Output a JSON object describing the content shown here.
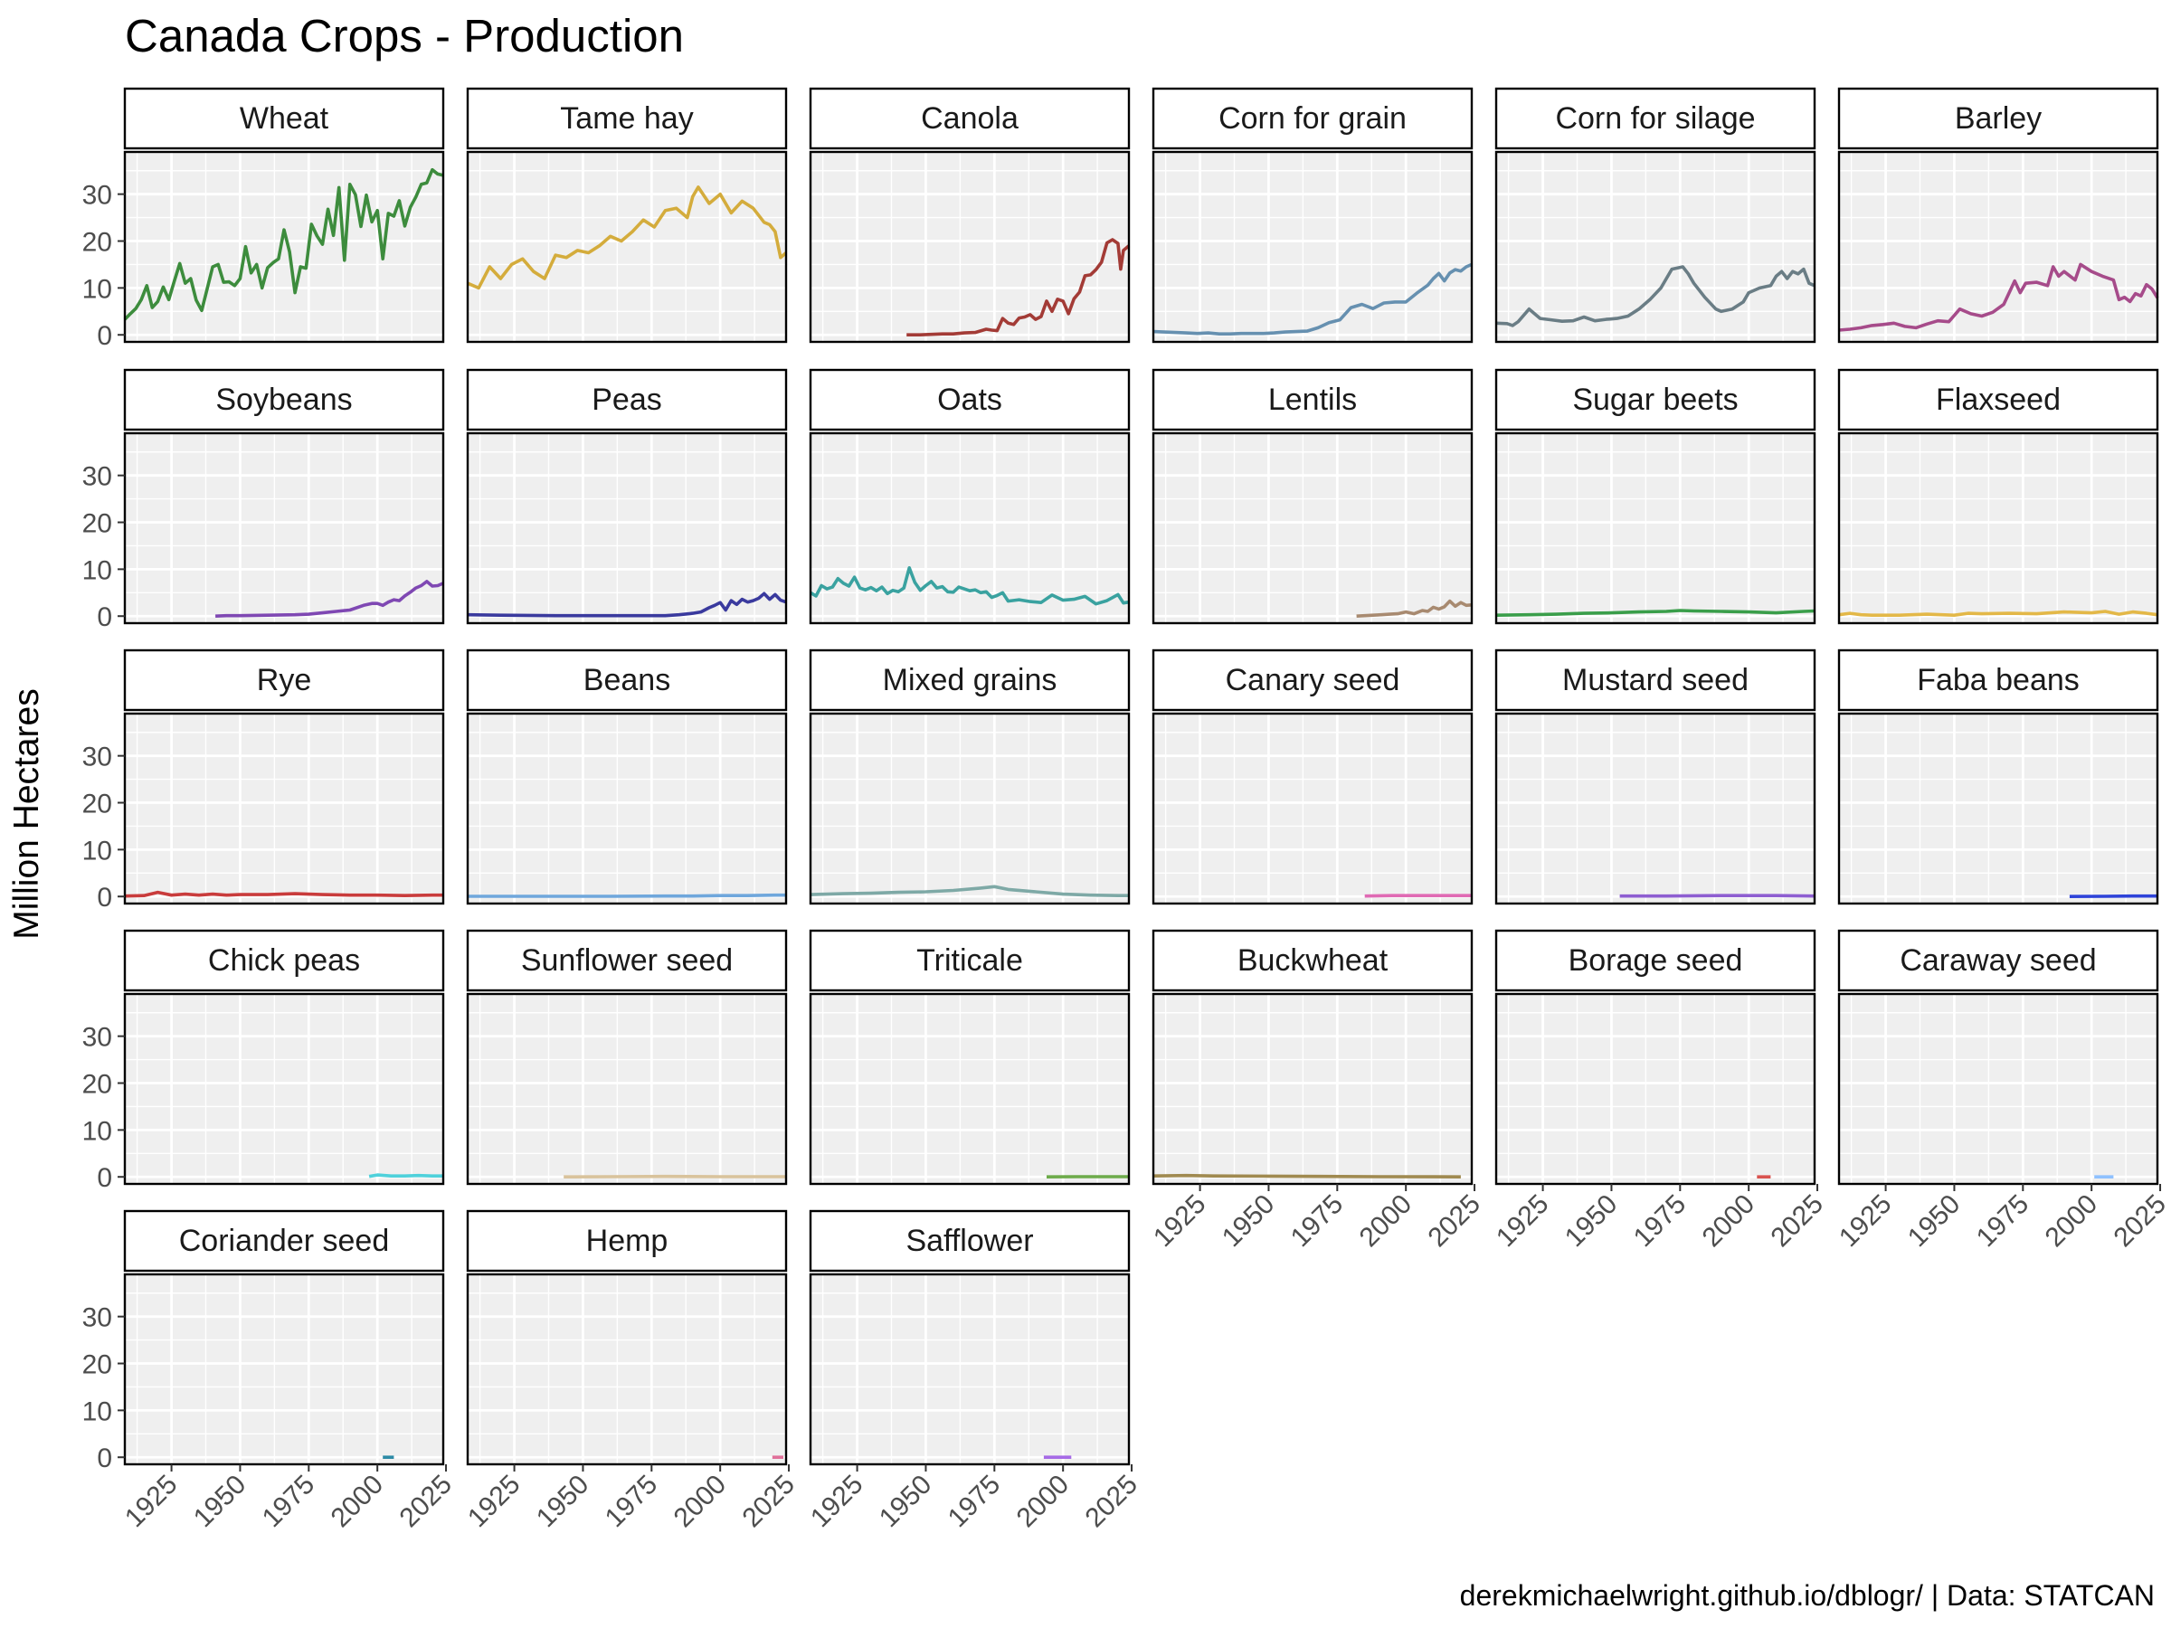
{
  "chart_data": {
    "type": "line",
    "title": "Canada Crops - Production",
    "ylabel": "Million Hectares",
    "xlabel": "",
    "caption": "derekmichaelwright.github.io/dblogr/ | Data: STATCAN",
    "xlim": [
      1908,
      2024
    ],
    "ylim": [
      -1.5,
      39
    ],
    "xticks": [
      1925,
      1950,
      1975,
      2000,
      2025
    ],
    "yticks": [
      0,
      10,
      20,
      30
    ],
    "grid": true,
    "legend": "none",
    "panels": [
      {
        "name": "Wheat",
        "color": "#3d8c3d",
        "x": [
          1908,
          1910,
          1912,
          1914,
          1916,
          1918,
          1920,
          1922,
          1924,
          1926,
          1928,
          1930,
          1932,
          1934,
          1936,
          1938,
          1940,
          1942,
          1944,
          1946,
          1948,
          1950,
          1952,
          1954,
          1956,
          1958,
          1960,
          1962,
          1964,
          1966,
          1968,
          1970,
          1972,
          1974,
          1976,
          1978,
          1980,
          1982,
          1984,
          1986,
          1988,
          1990,
          1992,
          1994,
          1996,
          1998,
          2000,
          2002,
          2004,
          2006,
          2008,
          2010,
          2012,
          2014,
          2016,
          2018,
          2020,
          2022,
          2024
        ],
        "values": [
          3.3,
          4.5,
          5.6,
          7.5,
          10.5,
          5.8,
          7.1,
          10.2,
          7.5,
          11.4,
          15.2,
          11.0,
          12.0,
          7.4,
          5.2,
          9.8,
          14.5,
          15.0,
          11.2,
          11.3,
          10.5,
          12.0,
          18.8,
          13.2,
          15.0,
          10.0,
          14.3,
          15.4,
          16.2,
          22.4,
          17.7,
          9.0,
          14.5,
          14.2,
          23.6,
          21.1,
          19.3,
          26.8,
          21.2,
          31.4,
          15.9,
          32.1,
          29.9,
          23.1,
          29.8,
          24.1,
          26.5,
          16.2,
          25.9,
          25.3,
          28.6,
          23.2,
          27.2,
          29.4,
          32.1,
          32.4,
          35.2,
          34.3,
          34.0
        ]
      },
      {
        "name": "Tame hay",
        "color": "#d4ac3c",
        "x": [
          1908,
          1912,
          1916,
          1920,
          1924,
          1928,
          1932,
          1936,
          1940,
          1944,
          1948,
          1952,
          1956,
          1960,
          1964,
          1968,
          1972,
          1976,
          1980,
          1984,
          1988,
          1990,
          1992,
          1996,
          2000,
          2004,
          2008,
          2012,
          2016,
          2018,
          2020,
          2022,
          2024
        ],
        "values": [
          11.0,
          10.0,
          14.5,
          12.0,
          15.0,
          16.2,
          13.5,
          12.0,
          17.0,
          16.5,
          18.0,
          17.5,
          19.0,
          21.0,
          20.0,
          22.0,
          24.5,
          23.0,
          26.5,
          27.0,
          25.0,
          29.5,
          31.5,
          28.0,
          30.0,
          26.0,
          28.5,
          27.0,
          24.0,
          23.5,
          22.0,
          16.5,
          17.5
        ]
      },
      {
        "name": "Canola",
        "color": "#a33b36",
        "x": [
          1943,
          1948,
          1952,
          1956,
          1960,
          1964,
          1968,
          1972,
          1974,
          1976,
          1978,
          1980,
          1982,
          1984,
          1986,
          1988,
          1990,
          1992,
          1994,
          1996,
          1998,
          2000,
          2002,
          2004,
          2006,
          2008,
          2010,
          2012,
          2014,
          2016,
          2018,
          2020,
          2021,
          2022,
          2023,
          2024
        ],
        "values": [
          0.0,
          0.0,
          0.1,
          0.2,
          0.2,
          0.4,
          0.5,
          1.2,
          1.0,
          0.9,
          3.5,
          2.5,
          2.2,
          3.6,
          3.8,
          4.3,
          3.3,
          3.9,
          7.2,
          5.0,
          7.6,
          7.2,
          4.5,
          7.7,
          9.1,
          12.6,
          12.8,
          13.9,
          15.5,
          19.6,
          20.3,
          19.5,
          14.0,
          18.0,
          18.5,
          19.0
        ]
      },
      {
        "name": "Corn for grain",
        "color": "#6690b0",
        "x": [
          1908,
          1912,
          1916,
          1920,
          1924,
          1928,
          1932,
          1936,
          1940,
          1944,
          1948,
          1952,
          1956,
          1960,
          1964,
          1968,
          1972,
          1976,
          1980,
          1984,
          1988,
          1992,
          1996,
          2000,
          2004,
          2008,
          2010,
          2012,
          2014,
          2016,
          2018,
          2020,
          2022,
          2024
        ],
        "values": [
          0.7,
          0.6,
          0.5,
          0.4,
          0.3,
          0.4,
          0.2,
          0.2,
          0.3,
          0.3,
          0.3,
          0.4,
          0.6,
          0.7,
          0.8,
          1.5,
          2.6,
          3.2,
          5.8,
          6.5,
          5.6,
          6.8,
          7.0,
          7.0,
          8.9,
          10.6,
          12.0,
          13.1,
          11.5,
          13.2,
          13.9,
          13.6,
          14.5,
          15.0
        ]
      },
      {
        "name": "Corn for silage",
        "color": "#6a7d85",
        "x": [
          1908,
          1912,
          1914,
          1916,
          1920,
          1924,
          1928,
          1932,
          1936,
          1940,
          1944,
          1948,
          1952,
          1956,
          1960,
          1964,
          1968,
          1972,
          1976,
          1978,
          1980,
          1984,
          1988,
          1990,
          1994,
          1998,
          2000,
          2004,
          2008,
          2010,
          2012,
          2014,
          2016,
          2018,
          2020,
          2022,
          2024
        ],
        "values": [
          2.5,
          2.4,
          2.0,
          2.8,
          5.5,
          3.5,
          3.2,
          2.9,
          3.0,
          3.8,
          3.0,
          3.3,
          3.5,
          4.0,
          5.5,
          7.5,
          10.0,
          14.0,
          14.5,
          13.0,
          11.0,
          8.0,
          5.5,
          5.0,
          5.5,
          7.0,
          9.0,
          10.0,
          10.5,
          12.5,
          13.5,
          12.0,
          13.5,
          13.0,
          14.0,
          11.0,
          10.5
        ]
      },
      {
        "name": "Barley",
        "color": "#a64b8a",
        "x": [
          1908,
          1912,
          1916,
          1920,
          1924,
          1928,
          1932,
          1936,
          1940,
          1944,
          1948,
          1952,
          1956,
          1960,
          1964,
          1968,
          1972,
          1974,
          1976,
          1980,
          1984,
          1986,
          1988,
          1990,
          1994,
          1996,
          2000,
          2004,
          2008,
          2010,
          2012,
          2014,
          2016,
          2018,
          2020,
          2022,
          2024
        ],
        "values": [
          1.0,
          1.2,
          1.5,
          2.0,
          2.2,
          2.5,
          1.8,
          1.5,
          2.3,
          3.0,
          2.8,
          5.5,
          4.5,
          4.0,
          4.8,
          6.5,
          11.5,
          9.0,
          11.0,
          11.2,
          10.5,
          14.5,
          12.5,
          13.5,
          11.7,
          15.0,
          13.5,
          12.5,
          11.7,
          7.5,
          8.0,
          7.1,
          8.8,
          8.3,
          10.7,
          9.8,
          7.9
        ]
      },
      {
        "name": "Soybeans",
        "color": "#7f48b3",
        "x": [
          1941,
          1945,
          1950,
          1955,
          1960,
          1965,
          1970,
          1975,
          1980,
          1985,
          1990,
          1995,
          1998,
          2000,
          2002,
          2004,
          2006,
          2008,
          2010,
          2012,
          2014,
          2016,
          2018,
          2020,
          2022,
          2024
        ],
        "values": [
          0.0,
          0.1,
          0.1,
          0.15,
          0.2,
          0.25,
          0.3,
          0.4,
          0.7,
          1.0,
          1.3,
          2.3,
          2.7,
          2.7,
          2.3,
          3.0,
          3.5,
          3.3,
          4.3,
          5.1,
          6.0,
          6.5,
          7.4,
          6.4,
          6.5,
          7.0
        ]
      },
      {
        "name": "Peas",
        "color": "#3a3a9e",
        "x": [
          1908,
          1920,
          1930,
          1940,
          1950,
          1960,
          1970,
          1980,
          1985,
          1990,
          1993,
          1996,
          1998,
          2000,
          2002,
          2004,
          2006,
          2008,
          2010,
          2012,
          2014,
          2016,
          2018,
          2020,
          2022,
          2024
        ],
        "values": [
          0.3,
          0.2,
          0.15,
          0.1,
          0.1,
          0.1,
          0.1,
          0.1,
          0.3,
          0.6,
          0.9,
          1.8,
          2.3,
          2.9,
          1.3,
          3.3,
          2.5,
          3.6,
          3.0,
          3.3,
          3.8,
          4.8,
          3.6,
          4.6,
          3.4,
          3.0
        ]
      },
      {
        "name": "Oats",
        "color": "#3aa2a0",
        "x": [
          1908,
          1910,
          1912,
          1914,
          1916,
          1918,
          1920,
          1922,
          1924,
          1926,
          1928,
          1930,
          1932,
          1934,
          1936,
          1938,
          1940,
          1942,
          1944,
          1946,
          1948,
          1950,
          1952,
          1954,
          1956,
          1958,
          1960,
          1962,
          1964,
          1966,
          1968,
          1970,
          1972,
          1974,
          1976,
          1978,
          1980,
          1984,
          1988,
          1992,
          1996,
          2000,
          2004,
          2008,
          2012,
          2016,
          2020,
          2022,
          2024
        ],
        "values": [
          5.0,
          4.3,
          6.5,
          5.8,
          6.2,
          8.0,
          7.0,
          6.4,
          8.3,
          6.0,
          5.6,
          6.1,
          5.4,
          6.2,
          4.8,
          5.5,
          5.2,
          6.0,
          10.3,
          7.2,
          5.5,
          6.5,
          7.4,
          6.0,
          6.3,
          5.2,
          5.1,
          6.2,
          5.8,
          5.4,
          5.6,
          5.0,
          5.2,
          4.0,
          4.4,
          5.0,
          3.2,
          3.5,
          3.1,
          2.9,
          4.5,
          3.4,
          3.6,
          4.2,
          2.6,
          3.3,
          4.6,
          2.8,
          3.0
        ]
      },
      {
        "name": "Lentils",
        "color": "#a88a70",
        "x": [
          1982,
          1985,
          1988,
          1991,
          1994,
          1997,
          2000,
          2003,
          2006,
          2008,
          2010,
          2012,
          2014,
          2016,
          2018,
          2020,
          2022,
          2024
        ],
        "values": [
          0.0,
          0.1,
          0.2,
          0.3,
          0.4,
          0.5,
          0.9,
          0.5,
          1.2,
          1.0,
          1.9,
          1.5,
          2.0,
          3.2,
          2.1,
          2.9,
          2.3,
          2.4
        ]
      },
      {
        "name": "Sugar beets",
        "color": "#3a9e4a",
        "x": [
          1908,
          1920,
          1930,
          1940,
          1950,
          1960,
          1970,
          1975,
          1980,
          1990,
          2000,
          2010,
          2020,
          2024
        ],
        "values": [
          0.2,
          0.3,
          0.4,
          0.6,
          0.7,
          0.9,
          1.0,
          1.2,
          1.1,
          1.0,
          0.9,
          0.7,
          1.0,
          1.1
        ]
      },
      {
        "name": "Flaxseed",
        "color": "#e3b848",
        "x": [
          1908,
          1912,
          1916,
          1920,
          1930,
          1940,
          1950,
          1955,
          1960,
          1970,
          1980,
          1990,
          2000,
          2005,
          2010,
          2015,
          2020,
          2024
        ],
        "values": [
          0.3,
          0.6,
          0.3,
          0.2,
          0.2,
          0.4,
          0.2,
          0.6,
          0.5,
          0.6,
          0.5,
          0.9,
          0.7,
          1.0,
          0.4,
          0.9,
          0.6,
          0.3
        ]
      },
      {
        "name": "Rye",
        "color": "#c93c3c",
        "x": [
          1908,
          1915,
          1920,
          1925,
          1930,
          1935,
          1940,
          1945,
          1950,
          1960,
          1970,
          1975,
          1980,
          1990,
          2000,
          2010,
          2020,
          2024
        ],
        "values": [
          0.1,
          0.2,
          0.9,
          0.3,
          0.5,
          0.3,
          0.5,
          0.3,
          0.4,
          0.4,
          0.6,
          0.5,
          0.4,
          0.3,
          0.3,
          0.2,
          0.3,
          0.3
        ]
      },
      {
        "name": "Beans",
        "color": "#6fa7dc",
        "x": [
          1908,
          1920,
          1940,
          1960,
          1980,
          1990,
          2000,
          2010,
          2020,
          2024
        ],
        "values": [
          0.05,
          0.05,
          0.05,
          0.05,
          0.1,
          0.1,
          0.2,
          0.2,
          0.3,
          0.3
        ]
      },
      {
        "name": "Mixed grains",
        "color": "#7ea9a6",
        "x": [
          1908,
          1920,
          1930,
          1940,
          1950,
          1960,
          1970,
          1975,
          1980,
          1990,
          2000,
          2010,
          2020,
          2024
        ],
        "values": [
          0.4,
          0.6,
          0.7,
          0.9,
          1.0,
          1.3,
          1.8,
          2.1,
          1.5,
          1.0,
          0.5,
          0.3,
          0.2,
          0.2
        ]
      },
      {
        "name": "Canary seed",
        "color": "#e06ab4",
        "x": [
          1985,
          1995,
          2005,
          2015,
          2024
        ],
        "values": [
          0.1,
          0.2,
          0.2,
          0.2,
          0.2
        ]
      },
      {
        "name": "Mustard seed",
        "color": "#8e5ed1",
        "x": [
          1953,
          1970,
          1990,
          2010,
          2024
        ],
        "values": [
          0.1,
          0.1,
          0.2,
          0.2,
          0.1
        ]
      },
      {
        "name": "Faba beans",
        "color": "#2e43d9",
        "x": [
          1992,
          2005,
          2015,
          2024
        ],
        "values": [
          0.0,
          0.05,
          0.1,
          0.1
        ]
      },
      {
        "name": "Chick peas",
        "color": "#4fd1db",
        "x": [
          1997,
          2000,
          2005,
          2010,
          2015,
          2020,
          2024
        ],
        "values": [
          0.1,
          0.4,
          0.2,
          0.2,
          0.3,
          0.2,
          0.2
        ]
      },
      {
        "name": "Sunflower seed",
        "color": "#d9c39c",
        "x": [
          1943,
          1960,
          1980,
          2000,
          2024
        ],
        "values": [
          0.0,
          0.05,
          0.1,
          0.05,
          0.05
        ]
      },
      {
        "name": "Triticale",
        "color": "#6dab4a",
        "x": [
          1994,
          2005,
          2015,
          2024
        ],
        "values": [
          0.0,
          0.05,
          0.05,
          0.05
        ]
      },
      {
        "name": "Buckwheat",
        "color": "#a08a50",
        "x": [
          1908,
          1920,
          1930,
          1950,
          1970,
          1990,
          2010,
          2020
        ],
        "values": [
          0.2,
          0.3,
          0.2,
          0.15,
          0.1,
          0.05,
          0.02,
          0.01
        ]
      },
      {
        "name": "Borage seed",
        "color": "#d9534f",
        "x": [
          2003,
          2008
        ],
        "values": [
          0.0,
          0.0
        ]
      },
      {
        "name": "Caraway seed",
        "color": "#8fc1ff",
        "x": [
          2001,
          2008
        ],
        "values": [
          0.0,
          0.0
        ]
      },
      {
        "name": "Coriander seed",
        "color": "#2d8ba6",
        "x": [
          2002,
          2006
        ],
        "values": [
          0.0,
          0.0
        ]
      },
      {
        "name": "Hemp",
        "color": "#e0709a",
        "x": [
          2019,
          2023
        ],
        "values": [
          0.0,
          0.0
        ]
      },
      {
        "name": "Safflower",
        "color": "#a66be6",
        "x": [
          1993,
          2003
        ],
        "values": [
          0.0,
          0.0
        ]
      }
    ]
  }
}
